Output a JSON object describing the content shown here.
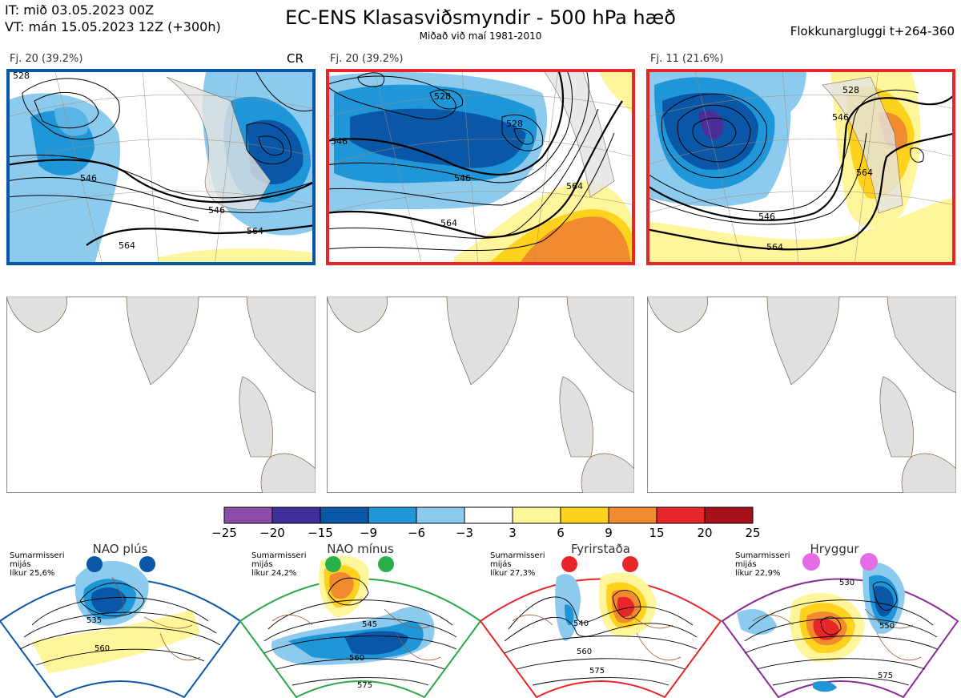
{
  "header": {
    "it_line": "IT: mið 03.05.2023 00Z",
    "vt_line": "VT: mán 15.05.2023 12Z  (+300h)",
    "title": "EC-ENS Klasasviðsmyndir - 500 hPa hæð",
    "subtitle": "Miðað við maí 1981-2010",
    "window": "Flokkunargluggi t+264-360"
  },
  "clusters": [
    {
      "label": "Fj. 20 (39.2%)",
      "extra": "CR",
      "frame_color": "#0a57a8",
      "contours": [
        "528",
        "546",
        "546",
        "564",
        "564"
      ]
    },
    {
      "label": "Fj. 20 (39.2%)",
      "extra": "",
      "frame_color": "#e8262a",
      "contours": [
        "528",
        "528",
        "546",
        "546",
        "564",
        "564"
      ]
    },
    {
      "label": "Fj. 11 (21.6%)",
      "extra": "",
      "frame_color": "#e8262a",
      "contours": [
        "528",
        "546",
        "546",
        "564",
        "564"
      ]
    }
  ],
  "colorbar": {
    "ticks": [
      "−25",
      "−20",
      "−15",
      "−9",
      "−6",
      "−3",
      "3",
      "6",
      "9",
      "15",
      "20",
      "25"
    ],
    "colors": [
      "#8b4da8",
      "#3f2f9a",
      "#0a57a8",
      "#1e96d8",
      "#8ccbee",
      "#ffffff",
      "#fff59a",
      "#ffd21e",
      "#f28a30",
      "#e8262a",
      "#a8101a"
    ]
  },
  "prototypes": [
    {
      "name": "NAO plús",
      "info": [
        "Sumarmisseri",
        "mijás",
        "líkur 25,6%"
      ],
      "color": "#0a57a8",
      "dot_color": "#0a57a8",
      "contours": [
        "535",
        "560"
      ]
    },
    {
      "name": "NAO mínus",
      "info": [
        "Sumarmisseri",
        "mijás",
        "líkur 24,2%"
      ],
      "color": "#2aa84a",
      "dot_color": "#2ab04a",
      "contours": [
        "545",
        "560",
        "575"
      ]
    },
    {
      "name": "Fyrirstaða",
      "info": [
        "Sumarmisseri",
        "mijás",
        "líkur 27,3%"
      ],
      "color": "#e8262a",
      "dot_color": "#e8262a",
      "contours": [
        "540",
        "560",
        "575"
      ]
    },
    {
      "name": "Hryggur",
      "info": [
        "Sumarmisseri",
        "mijás",
        "líkur 22,9%"
      ],
      "color": "#8a2b9a",
      "dot_color": "#e66be6",
      "contours": [
        "530",
        "550",
        "575"
      ]
    }
  ]
}
